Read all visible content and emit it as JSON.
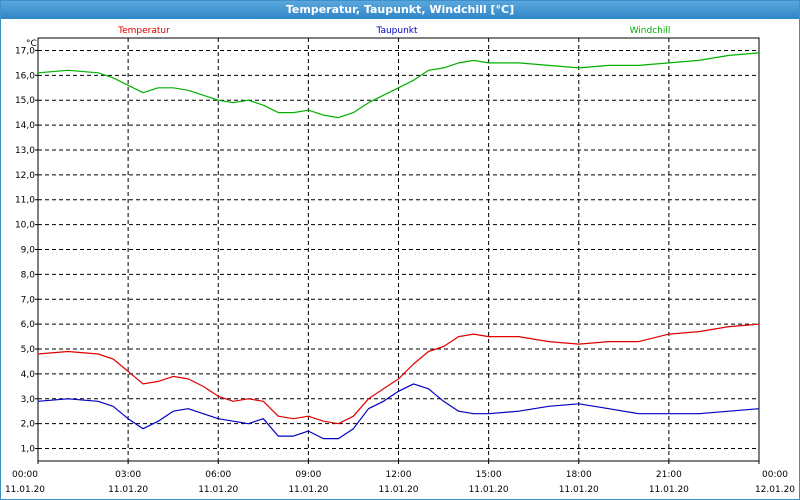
{
  "window": {
    "title": "Temperatur, Taupunkt, Windchill [°C]"
  },
  "chart_data": {
    "type": "line",
    "title": "Temperatur, Taupunkt, Windchill [°C]",
    "ylabel": "°C",
    "ylim": [
      0.5,
      17.5
    ],
    "xlim": [
      0,
      24
    ],
    "grid": true,
    "legend_position": "top",
    "yticks": [
      "1,0",
      "2,0",
      "3,0",
      "4,0",
      "5,0",
      "6,0",
      "7,0",
      "8,0",
      "9,0",
      "10,0",
      "11,0",
      "12,0",
      "13,0",
      "14,0",
      "15,0",
      "16,0",
      "17,0"
    ],
    "xticks": [
      {
        "time": "00:00",
        "date": "11.01.20"
      },
      {
        "time": "03:00",
        "date": "11.01.20"
      },
      {
        "time": "06:00",
        "date": "11.01.20"
      },
      {
        "time": "09:00",
        "date": "11.01.20"
      },
      {
        "time": "12:00",
        "date": "11.01.20"
      },
      {
        "time": "15:00",
        "date": "11.01.20"
      },
      {
        "time": "18:00",
        "date": "11.01.20"
      },
      {
        "time": "21:00",
        "date": "11.01.20"
      },
      {
        "time": "00:00",
        "date": "12.01.20"
      }
    ],
    "series": [
      {
        "name": "Temperatur",
        "color": "#e00000",
        "x": [
          0,
          1,
          2,
          2.5,
          3,
          3.5,
          4,
          4.5,
          5,
          5.5,
          6,
          6.5,
          7,
          7.5,
          8,
          8.5,
          9,
          9.5,
          10,
          10.5,
          11,
          11.5,
          12,
          12.5,
          13,
          13.5,
          14,
          14.5,
          15,
          16,
          17,
          18,
          19,
          20,
          21,
          22,
          23,
          24
        ],
        "values": [
          4.8,
          4.9,
          4.8,
          4.6,
          4.1,
          3.6,
          3.7,
          3.9,
          3.8,
          3.5,
          3.1,
          2.9,
          3.0,
          2.9,
          2.3,
          2.2,
          2.3,
          2.1,
          2.0,
          2.3,
          3.0,
          3.4,
          3.8,
          4.4,
          4.9,
          5.1,
          5.5,
          5.6,
          5.5,
          5.5,
          5.3,
          5.2,
          5.3,
          5.3,
          5.6,
          5.7,
          5.9,
          6.0
        ]
      },
      {
        "name": "Taupunkt",
        "color": "#0000c0",
        "x": [
          0,
          1,
          2,
          2.5,
          3,
          3.5,
          4,
          4.5,
          5,
          5.5,
          6,
          6.5,
          7,
          7.5,
          8,
          8.5,
          9,
          9.5,
          10,
          10.5,
          11,
          11.5,
          12,
          12.5,
          13,
          13.5,
          14,
          14.5,
          15,
          16,
          17,
          18,
          19,
          20,
          21,
          22,
          23,
          24
        ],
        "values": [
          2.9,
          3.0,
          2.9,
          2.7,
          2.2,
          1.8,
          2.1,
          2.5,
          2.6,
          2.4,
          2.2,
          2.1,
          2.0,
          2.2,
          1.5,
          1.5,
          1.7,
          1.4,
          1.4,
          1.8,
          2.6,
          2.9,
          3.3,
          3.6,
          3.4,
          2.9,
          2.5,
          2.4,
          2.4,
          2.5,
          2.7,
          2.8,
          2.6,
          2.4,
          2.4,
          2.4,
          2.5,
          2.6
        ]
      },
      {
        "name": "Windchill",
        "color": "#00b000",
        "x": [
          0,
          1,
          2,
          2.5,
          3,
          3.5,
          4,
          4.5,
          5,
          5.5,
          6,
          6.5,
          7,
          7.5,
          8,
          8.5,
          9,
          9.5,
          10,
          10.5,
          11,
          11.5,
          12,
          12.5,
          13,
          13.5,
          14,
          14.5,
          15,
          16,
          17,
          18,
          19,
          20,
          21,
          22,
          23,
          24
        ],
        "values": [
          16.1,
          16.2,
          16.1,
          15.9,
          15.6,
          15.3,
          15.5,
          15.5,
          15.4,
          15.2,
          15.0,
          14.9,
          15.0,
          14.8,
          14.5,
          14.5,
          14.6,
          14.4,
          14.3,
          14.5,
          14.9,
          15.2,
          15.5,
          15.8,
          16.2,
          16.3,
          16.5,
          16.6,
          16.5,
          16.5,
          16.4,
          16.3,
          16.4,
          16.4,
          16.5,
          16.6,
          16.8,
          16.9
        ]
      }
    ]
  }
}
